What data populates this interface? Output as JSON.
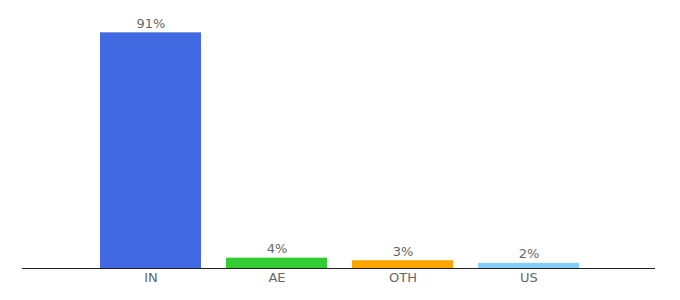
{
  "chart_data": {
    "type": "bar",
    "categories": [
      "IN",
      "AE",
      "OTH",
      "US"
    ],
    "values": [
      91,
      4,
      3,
      2
    ],
    "value_labels": [
      "91%",
      "4%",
      "3%",
      "2%"
    ],
    "colors": [
      "#4169e1",
      "#32cd32",
      "#ffa500",
      "#87cefa"
    ],
    "ylim": [
      0,
      100
    ],
    "yticks": [],
    "grid": false,
    "data_labels": true,
    "tick_labels": "x"
  }
}
